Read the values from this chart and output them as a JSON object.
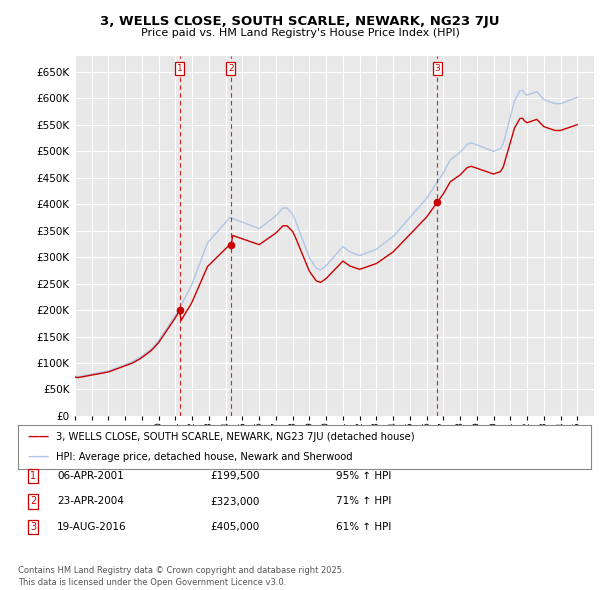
{
  "title": "3, WELLS CLOSE, SOUTH SCARLE, NEWARK, NG23 7JU",
  "subtitle": "Price paid vs. HM Land Registry's House Price Index (HPI)",
  "ylim": [
    0,
    680000
  ],
  "yticks": [
    0,
    50000,
    100000,
    150000,
    200000,
    250000,
    300000,
    350000,
    400000,
    450000,
    500000,
    550000,
    600000,
    650000
  ],
  "xlim_start": 1995,
  "xlim_end": 2026,
  "background_color": "#ffffff",
  "plot_bg_color": "#e8e8e8",
  "grid_color": "#ffffff",
  "hpi_color": "#aec6e8",
  "price_color": "#cc0000",
  "sale_marker_color": "#cc0000",
  "legend_line1": "3, WELLS CLOSE, SOUTH SCARLE, NEWARK, NG23 7JU (detached house)",
  "legend_line2": "HPI: Average price, detached house, Newark and Sherwood",
  "sales": [
    {
      "label": "1",
      "date_num": 2001.27,
      "price": 199500,
      "pct": "95%",
      "date_str": "06-APR-2001"
    },
    {
      "label": "2",
      "date_num": 2004.31,
      "price": 323000,
      "pct": "71%",
      "date_str": "23-APR-2004"
    },
    {
      "label": "3",
      "date_num": 2016.64,
      "price": 405000,
      "pct": "61%",
      "date_str": "19-AUG-2016"
    }
  ],
  "footer": "Contains HM Land Registry data © Crown copyright and database right 2025.\nThis data is licensed under the Open Government Licence v3.0.",
  "hpi_base": [
    75000,
    74500,
    74000,
    74500,
    75000,
    75500,
    76000,
    76500,
    77000,
    77500,
    78000,
    78500,
    79000,
    79500,
    80000,
    80500,
    81000,
    81500,
    82000,
    82500,
    83000,
    83500,
    84000,
    84500,
    85000,
    86000,
    87000,
    88000,
    89000,
    90000,
    91000,
    92000,
    93000,
    94000,
    95000,
    96000,
    97000,
    98000,
    99000,
    100000,
    101000,
    102000,
    103500,
    105000,
    106500,
    108000,
    109500,
    111000,
    113000,
    115000,
    117000,
    119000,
    121000,
    123000,
    125000,
    127500,
    130000,
    133000,
    136000,
    139000,
    142000,
    146000,
    150000,
    154000,
    158000,
    162000,
    166000,
    170000,
    174000,
    178000,
    182000,
    186000,
    190000,
    194500,
    199000,
    204000,
    209000,
    214000,
    219000,
    224000,
    229000,
    234000,
    239000,
    244000,
    250000,
    257000,
    264000,
    271000,
    278000,
    285000,
    292000,
    299000,
    306000,
    313000,
    320000,
    327000,
    330000,
    333000,
    336000,
    339000,
    342000,
    345000,
    348000,
    351000,
    354000,
    357000,
    360000,
    363000,
    366000,
    369000,
    372000,
    375000,
    374000,
    373000,
    372000,
    371000,
    370000,
    369000,
    368000,
    367000,
    366000,
    365000,
    364000,
    363000,
    362000,
    361000,
    360000,
    359000,
    358000,
    357000,
    356000,
    355000,
    354000,
    356000,
    358000,
    360000,
    362000,
    364000,
    366000,
    368000,
    370000,
    372000,
    374000,
    376000,
    378000,
    381000,
    384000,
    387000,
    390000,
    393000,
    393000,
    393000,
    393000,
    390000,
    387000,
    384000,
    381000,
    375000,
    369000,
    362000,
    355000,
    348000,
    341000,
    334000,
    327000,
    320000,
    313000,
    306000,
    299000,
    295000,
    291000,
    287000,
    283000,
    279000,
    278000,
    277000,
    276000,
    278000,
    280000,
    282000,
    284000,
    287000,
    290000,
    293000,
    296000,
    299000,
    302000,
    305000,
    308000,
    311000,
    314000,
    317000,
    320000,
    318000,
    316000,
    314000,
    312000,
    310000,
    309000,
    308000,
    307000,
    306000,
    305000,
    304000,
    303000,
    304000,
    305000,
    306000,
    307000,
    308000,
    309000,
    310000,
    311000,
    312000,
    313000,
    314000,
    315000,
    317000,
    319000,
    321000,
    323000,
    325000,
    327000,
    329000,
    331000,
    333000,
    335000,
    337000,
    339000,
    342000,
    345000,
    348000,
    351000,
    354000,
    357000,
    360000,
    363000,
    366000,
    369000,
    372000,
    375000,
    378000,
    381000,
    384000,
    387000,
    390000,
    393000,
    396000,
    399000,
    402000,
    405000,
    408000,
    411000,
    415000,
    419000,
    423000,
    427000,
    431000,
    435000,
    439000,
    443000,
    447000,
    451000,
    455000,
    459000,
    464000,
    469000,
    474000,
    479000,
    484000,
    486000,
    488000,
    490000,
    492000,
    494000,
    496000,
    498000,
    501000,
    504000,
    507000,
    510000,
    513000,
    514000,
    515000,
    516000,
    515000,
    514000,
    513000,
    512000,
    511000,
    510000,
    509000,
    508000,
    507000,
    506000,
    505000,
    504000,
    503000,
    502000,
    501000,
    500000,
    501000,
    502000,
    503000,
    504000,
    505000,
    510000,
    515000,
    525000,
    535000,
    545000,
    555000,
    565000,
    575000,
    585000,
    595000,
    600000,
    605000,
    610000,
    615000,
    615000,
    615000,
    610000,
    608000,
    606000,
    607000,
    608000,
    609000,
    610000,
    611000,
    612000,
    613000,
    610000,
    607000,
    604000,
    601000,
    598000,
    597000,
    596000,
    595000,
    594000,
    593000,
    592000,
    591000,
    590000,
    590000,
    590000,
    590000,
    590000,
    591000,
    592000,
    593000,
    594000,
    595000,
    596000,
    597000,
    598000,
    599000,
    600000,
    601000,
    602000
  ]
}
